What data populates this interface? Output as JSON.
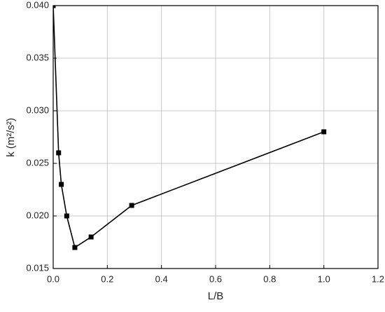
{
  "chart_data": {
    "type": "line",
    "x_label": "L/B",
    "y_label": "k (m²/s²)",
    "x": [
      0,
      0.02,
      0.03,
      0.05,
      0.08,
      0.14,
      0.29,
      1.0
    ],
    "series": [
      {
        "color": "#000000",
        "values": [
          0.04,
          0.026,
          0.023,
          0.02,
          0.017,
          0.018,
          0.021,
          0.028
        ]
      }
    ],
    "xlim": [
      0,
      1.2
    ],
    "xticks": [
      {
        "value": 0,
        "label": "0.0"
      },
      0.2,
      0.4,
      0.6,
      0.8,
      {
        "value": 1.0,
        "label": "1.0"
      },
      1.2
    ],
    "ylim": [
      0.015,
      0.04
    ],
    "yticks": [
      0.015,
      {
        "value": 0.02,
        "label": "0.020"
      },
      0.025,
      {
        "value": 0.03,
        "label": "0.030"
      },
      0.035,
      {
        "value": 0.04,
        "label": "0.040"
      }
    ],
    "grid": true
  }
}
